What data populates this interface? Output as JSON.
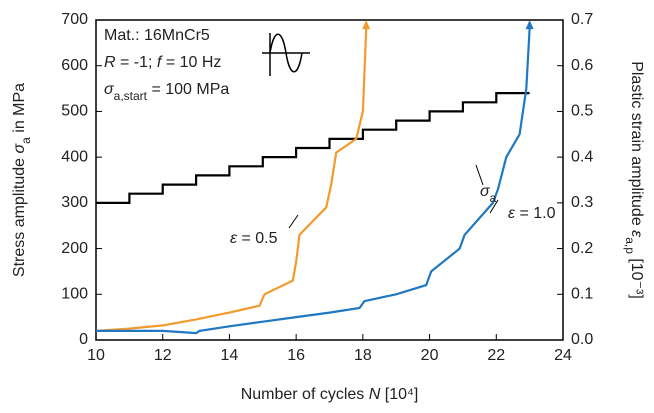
{
  "chart_data": {
    "type": "line",
    "xlabel": [
      {
        "text": "Number of cycles "
      },
      {
        "text": "N",
        "italic": true
      },
      {
        "text": " [10⁴]"
      }
    ],
    "ylabel": [
      {
        "text": "Stress amplitude "
      },
      {
        "text": "σ",
        "italic": true
      },
      {
        "text": "a",
        "sub": true
      },
      {
        "text": " in MPa"
      }
    ],
    "y2label": [
      {
        "text": "Plastic strain amplitude "
      },
      {
        "text": "ε",
        "italic": true
      },
      {
        "text": "a,p",
        "sub": true
      },
      {
        "text": " [10⁻³]"
      }
    ],
    "xlim": [
      10,
      24
    ],
    "xticks": [
      10,
      12,
      14,
      16,
      18,
      20,
      22,
      24
    ],
    "ylim": [
      0,
      700
    ],
    "yticks": [
      0,
      100,
      200,
      300,
      400,
      500,
      600,
      700
    ],
    "y2lim": [
      0,
      0.7
    ],
    "y2ticks": [
      {
        "value": 0,
        "label": "0.0"
      },
      0.1,
      0.2,
      0.3,
      0.4,
      0.5,
      0.6,
      0.7
    ],
    "series": [
      {
        "color": "#000000",
        "x": [
          10,
          11,
          11,
          12,
          12,
          13,
          13,
          14,
          14,
          15,
          15,
          16,
          16,
          17,
          17,
          18,
          18,
          19,
          19,
          20,
          20,
          21,
          21,
          22,
          22,
          23
        ],
        "values": [
          300,
          300,
          320,
          320,
          340,
          340,
          360,
          360,
          380,
          380,
          400,
          400,
          420,
          420,
          440,
          440,
          460,
          460,
          480,
          480,
          500,
          500,
          520,
          520,
          540,
          540
        ]
      },
      {
        "color": "#f39a2c",
        "axis": "y2",
        "x": [
          10,
          11,
          12,
          13,
          14,
          14.9,
          15.05,
          15.9,
          16.0,
          16.1,
          16.5,
          16.9,
          17.05,
          17.2,
          17.8,
          18.0,
          18.1
        ],
        "values": [
          0.02,
          0.025,
          0.032,
          0.045,
          0.06,
          0.075,
          0.1,
          0.13,
          0.17,
          0.23,
          0.26,
          0.29,
          0.34,
          0.41,
          0.44,
          0.5,
          0.68
        ]
      },
      {
        "color": "#1f78c1",
        "axis": "y2",
        "x": [
          10,
          11,
          12,
          13,
          13.1,
          14,
          15,
          16,
          17,
          17.9,
          18.05,
          19,
          19.9,
          20.05,
          20.9,
          21.05,
          21.9,
          22.05,
          22.3,
          22.7,
          22.9,
          23
        ],
        "values": [
          0.02,
          0.02,
          0.02,
          0.015,
          0.02,
          0.03,
          0.04,
          0.05,
          0.06,
          0.07,
          0.085,
          0.1,
          0.12,
          0.15,
          0.2,
          0.23,
          0.3,
          0.33,
          0.4,
          0.45,
          0.55,
          0.68
        ]
      }
    ],
    "annotations": [
      [
        {
          "text": "Mat.: 16MnCr5"
        }
      ],
      [
        {
          "text": "R",
          "italic": true
        },
        {
          "text": " = -1; "
        },
        {
          "text": "f",
          "italic": true
        },
        {
          "text": " = 10 Hz"
        }
      ],
      [
        {
          "text": "σ",
          "italic": true
        },
        {
          "text": "a,start",
          "sub": true
        },
        {
          "text": " = 100 MPa"
        }
      ],
      [
        {
          "text": "ε",
          "italic": true
        },
        {
          "text": " = 0.5"
        }
      ],
      [
        {
          "text": "ε",
          "italic": true
        },
        {
          "text": " = 1.0"
        }
      ],
      [
        {
          "text": "σ",
          "italic": true
        },
        {
          "text": "a",
          "sub": true
        }
      ]
    ]
  }
}
